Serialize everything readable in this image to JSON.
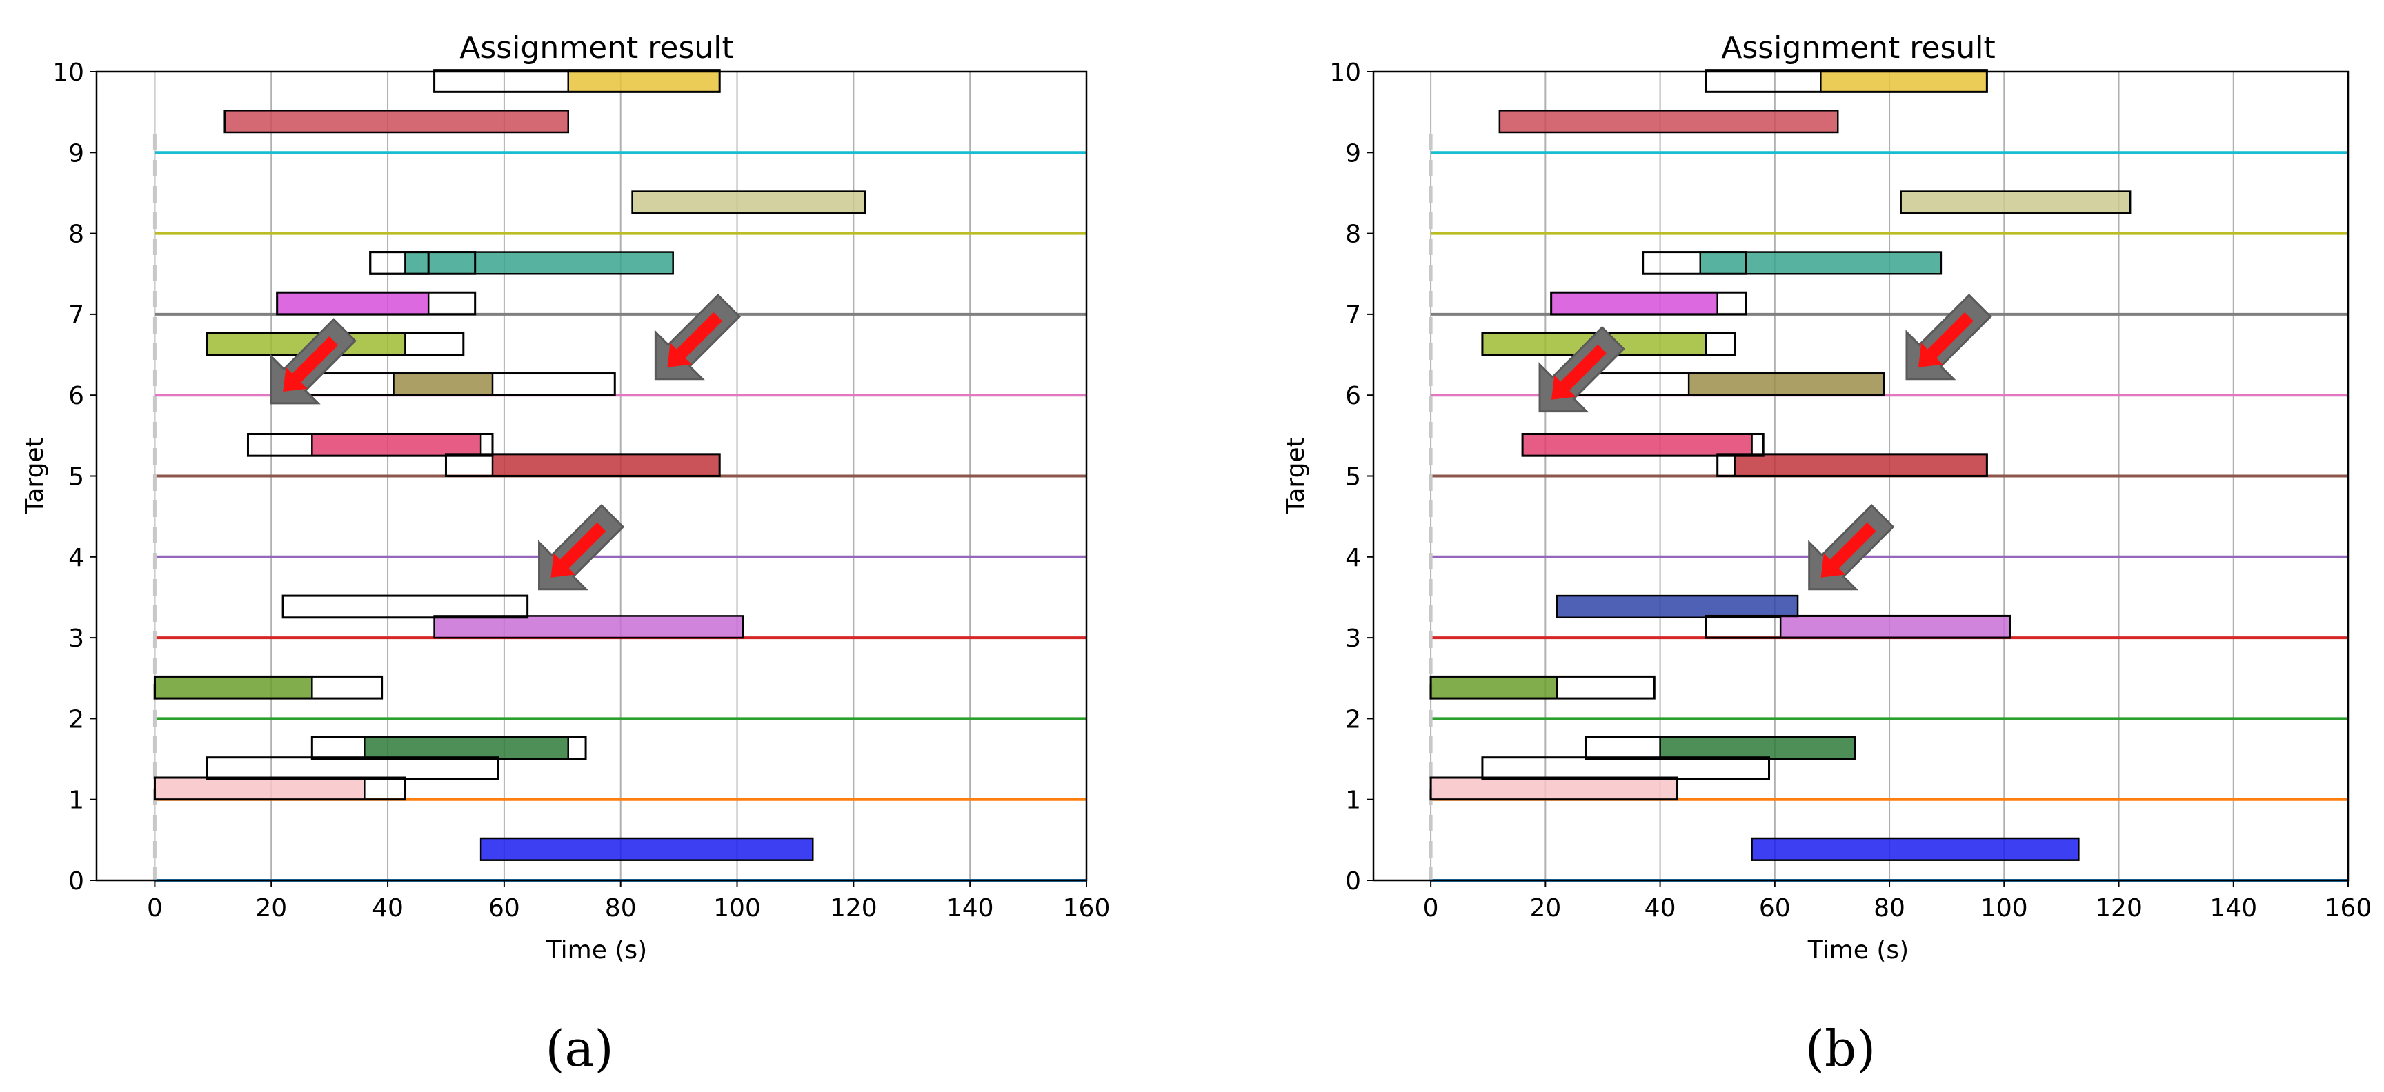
{
  "chart_data": [
    {
      "caption": "(a)",
      "type": "gantt",
      "title": "Assignment result",
      "xlabel": "Time (s)",
      "ylabel": "Target",
      "xlim": [
        -10,
        160
      ],
      "ylim": [
        0,
        10
      ],
      "grid": true,
      "xticks": [
        "0",
        "20",
        "40",
        "60",
        "80",
        "100",
        "120",
        "140",
        "160"
      ],
      "yticks": [
        "0",
        "1",
        "2",
        "3",
        "4",
        "5",
        "6",
        "7",
        "8",
        "9",
        "10"
      ],
      "target_lines": [
        {
          "y": 0,
          "color": "#1f77b4"
        },
        {
          "y": 1,
          "color": "#ff7f0e"
        },
        {
          "y": 2,
          "color": "#2ca02c"
        },
        {
          "y": 3,
          "color": "#d62728"
        },
        {
          "y": 4,
          "color": "#9467bd"
        },
        {
          "y": 5,
          "color": "#8c564b"
        },
        {
          "y": 6,
          "color": "#e377c2"
        },
        {
          "y": 7,
          "color": "#7f7f7f"
        },
        {
          "y": 8,
          "color": "#bcbd22"
        },
        {
          "y": 9,
          "color": "#17becf"
        }
      ],
      "windows": [
        {
          "start": 48,
          "end": 97,
          "base": 9.75
        },
        {
          "start": 37,
          "end": 55,
          "base": 7.5
        },
        {
          "start": 37,
          "end": 47,
          "base": 7.5
        },
        {
          "start": 21,
          "end": 55,
          "base": 7.0
        },
        {
          "start": 9,
          "end": 53,
          "base": 6.5
        },
        {
          "start": 24,
          "end": 79,
          "base": 6.0
        },
        {
          "start": 16,
          "end": 58,
          "base": 5.25
        },
        {
          "start": 50,
          "end": 97,
          "base": 5.0
        },
        {
          "start": 22,
          "end": 64,
          "base": 3.25
        },
        {
          "start": 0,
          "end": 39,
          "base": 2.25
        },
        {
          "start": 27,
          "end": 74,
          "base": 1.5
        },
        {
          "start": 9,
          "end": 59,
          "base": 1.25
        },
        {
          "start": 0,
          "end": 43,
          "base": 1.0
        }
      ],
      "tasks": [
        {
          "start": 71,
          "end": 97,
          "base": 9.75,
          "color": "#e8c33a"
        },
        {
          "start": 12,
          "end": 71,
          "base": 9.25,
          "color": "#cc4d5b"
        },
        {
          "start": 82,
          "end": 122,
          "base": 8.25,
          "color": "#cdc98f"
        },
        {
          "start": 43,
          "end": 89,
          "base": 7.5,
          "color": "#3aa68e"
        },
        {
          "start": 21,
          "end": 47,
          "base": 7.0,
          "color": "#d74fdb"
        },
        {
          "start": 9,
          "end": 43,
          "base": 6.5,
          "color": "#9fbb32"
        },
        {
          "start": 41,
          "end": 58,
          "base": 6.0,
          "color": "#9c8e4a"
        },
        {
          "start": 27,
          "end": 56,
          "base": 5.25,
          "color": "#e23f6e"
        },
        {
          "start": 58,
          "end": 97,
          "base": 5.0,
          "color": "#c0353c"
        },
        {
          "start": 48,
          "end": 101,
          "base": 3.0,
          "color": "#c86fd6"
        },
        {
          "start": 0,
          "end": 27,
          "base": 2.25,
          "color": "#6b9f2d"
        },
        {
          "start": 36,
          "end": 71,
          "base": 1.5,
          "color": "#2f7a3a"
        },
        {
          "start": 0,
          "end": 36,
          "base": 1.0,
          "color": "#f8c4c8"
        },
        {
          "start": 56,
          "end": 113,
          "base": 0.25,
          "color": "#1a1ff0"
        }
      ],
      "arrows": [
        {
          "x": 20,
          "y": 5.9
        },
        {
          "x": 86,
          "y": 6.2
        },
        {
          "x": 66,
          "y": 3.6
        }
      ]
    },
    {
      "caption": "(b)",
      "type": "gantt",
      "title": "Assignment result",
      "xlabel": "Time (s)",
      "ylabel": "Target",
      "xlim": [
        -10,
        160
      ],
      "ylim": [
        0,
        10
      ],
      "grid": true,
      "xticks": [
        "0",
        "20",
        "40",
        "60",
        "80",
        "100",
        "120",
        "140",
        "160"
      ],
      "yticks": [
        "0",
        "1",
        "2",
        "3",
        "4",
        "5",
        "6",
        "7",
        "8",
        "9",
        "10"
      ],
      "target_lines": [
        {
          "y": 0,
          "color": "#1f77b4"
        },
        {
          "y": 1,
          "color": "#ff7f0e"
        },
        {
          "y": 2,
          "color": "#2ca02c"
        },
        {
          "y": 3,
          "color": "#d62728"
        },
        {
          "y": 4,
          "color": "#9467bd"
        },
        {
          "y": 5,
          "color": "#8c564b"
        },
        {
          "y": 6,
          "color": "#e377c2"
        },
        {
          "y": 7,
          "color": "#7f7f7f"
        },
        {
          "y": 8,
          "color": "#bcbd22"
        },
        {
          "y": 9,
          "color": "#17becf"
        }
      ],
      "windows": [
        {
          "start": 48,
          "end": 97,
          "base": 9.75
        },
        {
          "start": 37,
          "end": 55,
          "base": 7.5
        },
        {
          "start": 21,
          "end": 55,
          "base": 7.0
        },
        {
          "start": 9,
          "end": 53,
          "base": 6.5
        },
        {
          "start": 24,
          "end": 79,
          "base": 6.0
        },
        {
          "start": 16,
          "end": 58,
          "base": 5.25
        },
        {
          "start": 50,
          "end": 97,
          "base": 5.0
        },
        {
          "start": 48,
          "end": 101,
          "base": 3.0
        },
        {
          "start": 0,
          "end": 39,
          "base": 2.25
        },
        {
          "start": 27,
          "end": 74,
          "base": 1.5
        },
        {
          "start": 9,
          "end": 59,
          "base": 1.25
        },
        {
          "start": 0,
          "end": 43,
          "base": 1.0
        }
      ],
      "tasks": [
        {
          "start": 68,
          "end": 97,
          "base": 9.75,
          "color": "#e8c33a"
        },
        {
          "start": 12,
          "end": 71,
          "base": 9.25,
          "color": "#cc4d5b"
        },
        {
          "start": 82,
          "end": 122,
          "base": 8.25,
          "color": "#cdc98f"
        },
        {
          "start": 47,
          "end": 89,
          "base": 7.5,
          "color": "#3aa68e"
        },
        {
          "start": 21,
          "end": 50,
          "base": 7.0,
          "color": "#d74fdb"
        },
        {
          "start": 9,
          "end": 48,
          "base": 6.5,
          "color": "#9fbb32"
        },
        {
          "start": 45,
          "end": 79,
          "base": 6.0,
          "color": "#9c8e4a"
        },
        {
          "start": 16,
          "end": 56,
          "base": 5.25,
          "color": "#e23f6e"
        },
        {
          "start": 53,
          "end": 97,
          "base": 5.0,
          "color": "#c0353c"
        },
        {
          "start": 22,
          "end": 64,
          "base": 3.25,
          "color": "#2f45a8"
        },
        {
          "start": 61,
          "end": 101,
          "base": 3.0,
          "color": "#c86fd6"
        },
        {
          "start": 0,
          "end": 22,
          "base": 2.25,
          "color": "#6b9f2d"
        },
        {
          "start": 40,
          "end": 74,
          "base": 1.5,
          "color": "#2f7a3a"
        },
        {
          "start": 0,
          "end": 43,
          "base": 1.0,
          "color": "#f8c4c8"
        },
        {
          "start": 56,
          "end": 113,
          "base": 0.25,
          "color": "#1a1ff0"
        }
      ],
      "arrows": [
        {
          "x": 19,
          "y": 5.8
        },
        {
          "x": 83,
          "y": 6.2
        },
        {
          "x": 66,
          "y": 3.6
        }
      ]
    }
  ]
}
